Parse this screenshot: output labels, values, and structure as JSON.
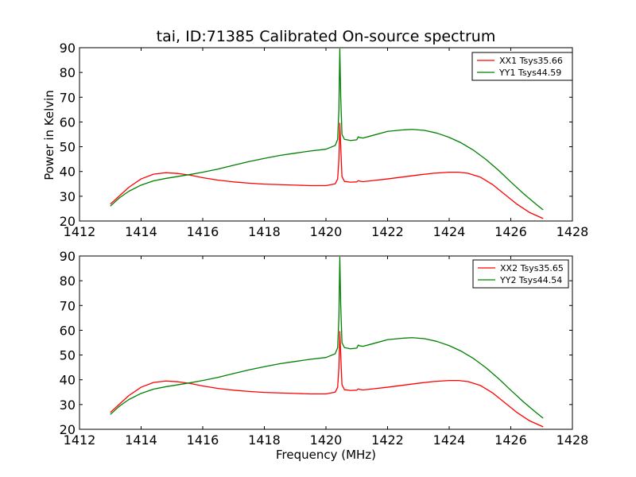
{
  "figure": {
    "title": "tai, ID:71385 Calibrated On-source spectrum",
    "xlabel": "Frequency (MHz)",
    "ylabel": "Power in Kelvin"
  },
  "chart_data": [
    {
      "type": "line",
      "title": "tai, ID:71385 Calibrated On-source spectrum",
      "xlabel": "",
      "ylabel": "Power in Kelvin",
      "xlim": [
        1412,
        1428
      ],
      "ylim": [
        20,
        90
      ],
      "xticks": [
        1412,
        1414,
        1416,
        1418,
        1420,
        1422,
        1424,
        1426,
        1428
      ],
      "yticks": [
        20,
        30,
        40,
        50,
        60,
        70,
        80,
        90
      ],
      "grid": false,
      "legend_position": "top-right",
      "series": [
        {
          "name": "XX1 Tsys35.66",
          "color": "#ff0000",
          "x": [
            1413.0,
            1413.3,
            1413.6,
            1414.0,
            1414.4,
            1414.8,
            1415.2,
            1415.6,
            1416.0,
            1416.5,
            1417.0,
            1417.5,
            1418.0,
            1418.5,
            1419.0,
            1419.5,
            1420.0,
            1420.3,
            1420.38,
            1420.42,
            1420.45,
            1420.48,
            1420.52,
            1420.6,
            1420.8,
            1421.0,
            1421.05,
            1421.1,
            1421.2,
            1421.5,
            1422.0,
            1422.5,
            1423.0,
            1423.5,
            1424.0,
            1424.3,
            1424.6,
            1425.0,
            1425.4,
            1425.8,
            1426.2,
            1426.6,
            1427.05
          ],
          "y": [
            26.8,
            30.2,
            33.6,
            37.0,
            38.9,
            39.5,
            39.2,
            38.5,
            37.5,
            36.5,
            35.8,
            35.3,
            34.9,
            34.7,
            34.5,
            34.3,
            34.3,
            35.0,
            37.0,
            45.0,
            59.5,
            50.0,
            38.0,
            36.0,
            35.7,
            35.8,
            36.3,
            36.1,
            35.9,
            36.3,
            37.0,
            37.8,
            38.6,
            39.3,
            39.7,
            39.7,
            39.3,
            37.8,
            34.8,
            30.8,
            26.8,
            23.5,
            21.0
          ]
        },
        {
          "name": "YY1 Tsys44.59",
          "color": "#008000",
          "x": [
            1413.0,
            1413.3,
            1413.6,
            1414.0,
            1414.4,
            1414.8,
            1415.2,
            1415.6,
            1416.0,
            1416.5,
            1417.0,
            1417.5,
            1418.0,
            1418.5,
            1419.0,
            1419.5,
            1420.0,
            1420.3,
            1420.38,
            1420.42,
            1420.45,
            1420.48,
            1420.52,
            1420.6,
            1420.8,
            1421.0,
            1421.05,
            1421.1,
            1421.2,
            1421.5,
            1422.0,
            1422.5,
            1422.8,
            1423.2,
            1423.6,
            1424.0,
            1424.4,
            1424.8,
            1425.2,
            1425.6,
            1426.0,
            1426.4,
            1426.8,
            1427.05
          ],
          "y": [
            26.0,
            29.4,
            32.0,
            34.5,
            36.2,
            37.2,
            38.0,
            38.8,
            39.7,
            41.0,
            42.5,
            44.0,
            45.3,
            46.5,
            47.4,
            48.3,
            49.0,
            50.5,
            53.0,
            65.0,
            89.5,
            70.0,
            55.0,
            53.0,
            52.5,
            52.8,
            54.0,
            53.7,
            53.5,
            54.5,
            56.2,
            56.8,
            57.0,
            56.6,
            55.5,
            53.8,
            51.5,
            48.5,
            44.8,
            40.5,
            35.8,
            31.2,
            27.0,
            24.5
          ]
        }
      ]
    },
    {
      "type": "line",
      "title": "",
      "xlabel": "Frequency (MHz)",
      "ylabel": "",
      "xlim": [
        1412,
        1428
      ],
      "ylim": [
        20,
        90
      ],
      "xticks": [
        1412,
        1414,
        1416,
        1418,
        1420,
        1422,
        1424,
        1426,
        1428
      ],
      "yticks": [
        20,
        30,
        40,
        50,
        60,
        70,
        80,
        90
      ],
      "grid": false,
      "legend_position": "top-right",
      "series": [
        {
          "name": "XX2 Tsys35.65",
          "color": "#ff0000",
          "x": [
            1413.0,
            1413.3,
            1413.6,
            1414.0,
            1414.4,
            1414.8,
            1415.2,
            1415.6,
            1416.0,
            1416.5,
            1417.0,
            1417.5,
            1418.0,
            1418.5,
            1419.0,
            1419.5,
            1420.0,
            1420.3,
            1420.38,
            1420.42,
            1420.45,
            1420.48,
            1420.52,
            1420.6,
            1420.8,
            1421.0,
            1421.05,
            1421.1,
            1421.2,
            1421.5,
            1422.0,
            1422.5,
            1423.0,
            1423.5,
            1424.0,
            1424.3,
            1424.6,
            1425.0,
            1425.4,
            1425.8,
            1426.2,
            1426.6,
            1427.05
          ],
          "y": [
            26.8,
            30.2,
            33.6,
            37.0,
            38.9,
            39.5,
            39.2,
            38.5,
            37.5,
            36.5,
            35.8,
            35.3,
            34.9,
            34.7,
            34.5,
            34.3,
            34.3,
            35.0,
            37.0,
            45.0,
            59.5,
            50.0,
            38.0,
            36.0,
            35.7,
            35.8,
            36.3,
            36.1,
            35.9,
            36.3,
            37.0,
            37.8,
            38.6,
            39.3,
            39.7,
            39.7,
            39.3,
            37.8,
            34.8,
            30.8,
            26.8,
            23.5,
            21.0
          ]
        },
        {
          "name": "YY2 Tsys44.54",
          "color": "#008000",
          "x": [
            1413.0,
            1413.3,
            1413.6,
            1414.0,
            1414.4,
            1414.8,
            1415.2,
            1415.6,
            1416.0,
            1416.5,
            1417.0,
            1417.5,
            1418.0,
            1418.5,
            1419.0,
            1419.5,
            1420.0,
            1420.3,
            1420.38,
            1420.42,
            1420.45,
            1420.48,
            1420.52,
            1420.6,
            1420.8,
            1421.0,
            1421.05,
            1421.1,
            1421.2,
            1421.5,
            1422.0,
            1422.5,
            1422.8,
            1423.2,
            1423.6,
            1424.0,
            1424.4,
            1424.8,
            1425.2,
            1425.6,
            1426.0,
            1426.4,
            1426.8,
            1427.05
          ],
          "y": [
            26.0,
            29.4,
            32.0,
            34.5,
            36.2,
            37.2,
            38.0,
            38.8,
            39.7,
            41.0,
            42.5,
            44.0,
            45.3,
            46.5,
            47.4,
            48.3,
            49.0,
            50.5,
            53.0,
            65.0,
            89.5,
            70.0,
            55.0,
            53.0,
            52.5,
            52.8,
            54.0,
            53.7,
            53.5,
            54.5,
            56.2,
            56.8,
            57.0,
            56.6,
            55.5,
            53.8,
            51.5,
            48.5,
            44.8,
            40.5,
            35.8,
            31.2,
            27.0,
            24.5
          ]
        }
      ]
    }
  ]
}
